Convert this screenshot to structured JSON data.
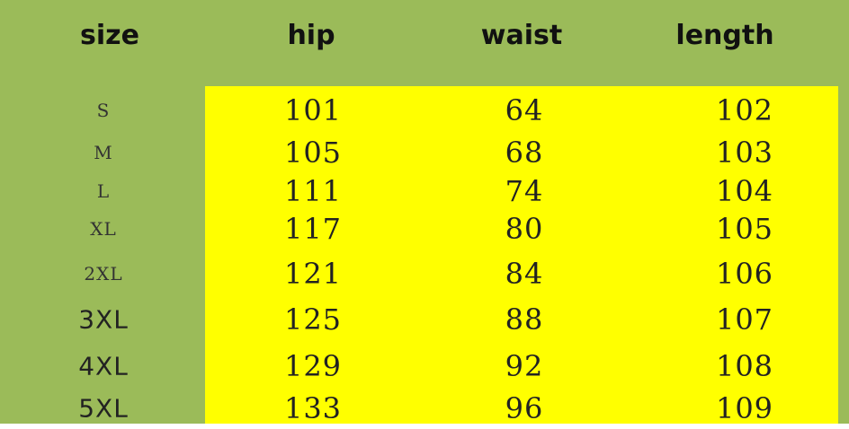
{
  "colors": {
    "header_bg": "#9bbb59",
    "data_bg": "#ffff00"
  },
  "table": {
    "headers": [
      "size",
      "hip",
      "waist",
      "length"
    ],
    "rows": [
      {
        "size": "S",
        "hip": "101",
        "waist": "64",
        "length": "102"
      },
      {
        "size": "M",
        "hip": "105",
        "waist": "68",
        "length": "103"
      },
      {
        "size": "L",
        "hip": "111",
        "waist": "74",
        "length": "104"
      },
      {
        "size": "XL",
        "hip": "117",
        "waist": "80",
        "length": "105"
      },
      {
        "size": "2XL",
        "hip": "121",
        "waist": "84",
        "length": "106"
      },
      {
        "size": "3XL",
        "hip": "125",
        "waist": "88",
        "length": "107"
      },
      {
        "size": "4XL",
        "hip": "129",
        "waist": "92",
        "length": "108"
      },
      {
        "size": "5XL",
        "hip": "133",
        "waist": "96",
        "length": "109"
      }
    ]
  }
}
